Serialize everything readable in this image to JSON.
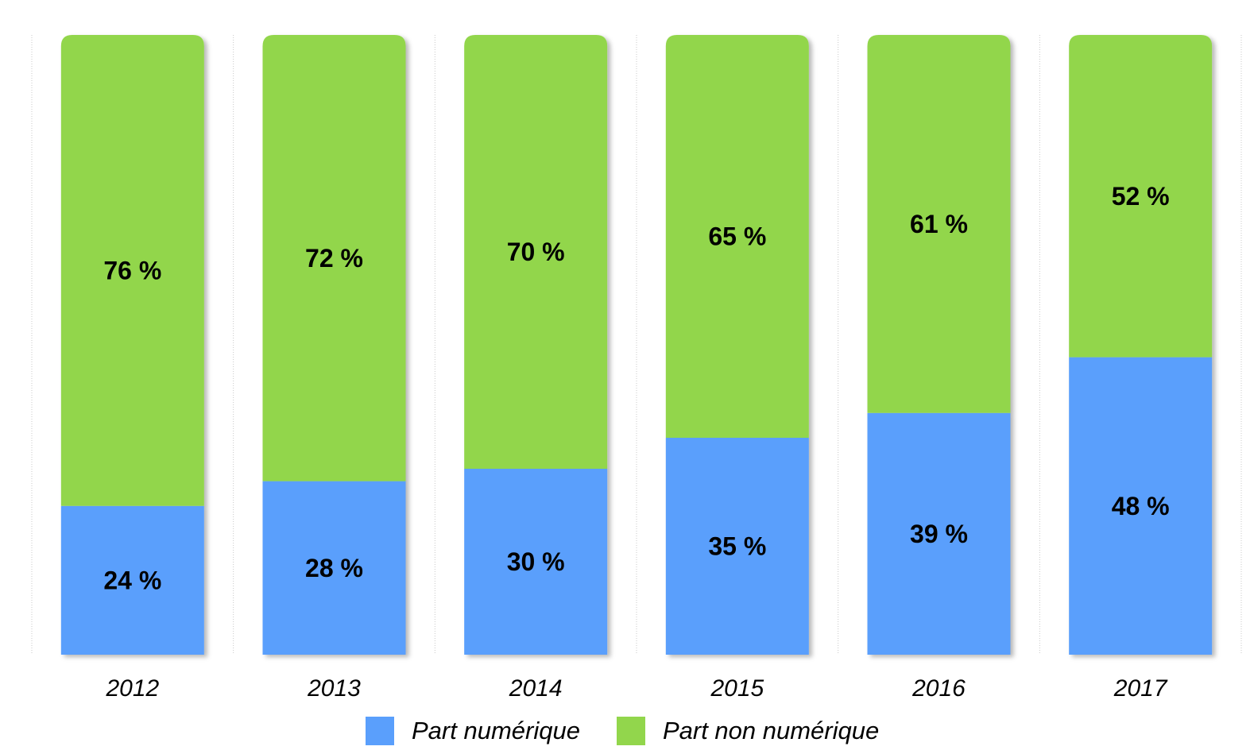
{
  "chart_data": {
    "type": "bar",
    "stacked": true,
    "categories": [
      "2012",
      "2013",
      "2014",
      "2015",
      "2016",
      "2017"
    ],
    "series": [
      {
        "name": "Part numérique",
        "color": "#5a9ffc",
        "values": [
          24,
          28,
          30,
          35,
          39,
          48
        ],
        "labels": [
          "24 %",
          "28 %",
          "30 %",
          "35 %",
          "39 %",
          "48 %"
        ]
      },
      {
        "name": "Part non numérique",
        "color": "#92d64c",
        "values": [
          76,
          72,
          70,
          65,
          61,
          52
        ],
        "labels": [
          "76 %",
          "72 %",
          "70 %",
          "65 %",
          "61 %",
          "52 %"
        ]
      }
    ],
    "ylim": [
      0,
      100
    ],
    "grid": false,
    "legend_position": "bottom",
    "title": "",
    "xlabel": "",
    "ylabel": ""
  },
  "legend": {
    "items": [
      {
        "label": "Part numérique",
        "color": "#5a9ffc"
      },
      {
        "label": "Part non numérique",
        "color": "#92d64c"
      }
    ]
  }
}
